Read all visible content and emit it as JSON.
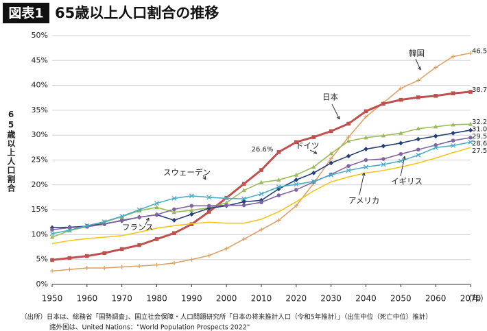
{
  "chart_data": {
    "type": "line",
    "figure_label": "図表1",
    "title": "65歳以上人口割合の推移",
    "y_label": "65歳以上人口割合",
    "x_label": "（年）",
    "notes": [
      "（出所）日本は、総務省「国勢調査」、国立社会保障・人口問題研究所「日本の将来推計人口（令和5年推計）」（出生中位（死亡中位）推計）",
      "諸外国は、United Nations：\"World Population Prospects 2022\""
    ],
    "x": [
      1950,
      1955,
      1960,
      1965,
      1970,
      1975,
      1980,
      1985,
      1990,
      1995,
      2000,
      2005,
      2010,
      2015,
      2020,
      2025,
      2030,
      2035,
      2040,
      2045,
      2050,
      2055,
      2060,
      2065,
      2070
    ],
    "xlim": [
      1950,
      2070
    ],
    "xticks": [
      1950,
      1960,
      1970,
      1980,
      1990,
      2000,
      2010,
      2020,
      2030,
      2040,
      2050,
      2060,
      2070
    ],
    "ylim": [
      0,
      50
    ],
    "yticks": [
      {
        "value": 0,
        "label": "0%"
      },
      {
        "value": 5,
        "label": "5%"
      },
      {
        "value": 10,
        "label": "10%"
      },
      {
        "value": 15,
        "label": "15%"
      },
      {
        "value": 20,
        "label": "20%"
      },
      {
        "value": 25,
        "label": "25%"
      },
      {
        "value": 30,
        "label": "30%"
      },
      {
        "value": 35,
        "label": "35%"
      },
      {
        "value": 40,
        "label": "40%"
      },
      {
        "value": 45,
        "label": "45%"
      },
      {
        "value": 50,
        "label": "50%"
      }
    ],
    "grid": true,
    "series": [
      {
        "name": "韓国",
        "color": "#dfa266",
        "marker": "plus",
        "values": [
          2.7,
          3.0,
          3.3,
          3.3,
          3.5,
          3.7,
          3.9,
          4.3,
          5.0,
          5.8,
          7.2,
          9.1,
          11.0,
          12.9,
          15.8,
          20.3,
          25.3,
          29.6,
          33.7,
          36.5,
          39.4,
          41.0,
          43.6,
          45.8,
          46.5
        ],
        "value_labels": [
          null,
          null,
          null,
          null,
          null,
          null,
          null,
          null,
          null,
          null,
          null,
          null,
          null,
          null,
          null,
          null,
          null,
          null,
          null,
          null,
          null,
          null,
          null,
          null,
          "46.5%"
        ]
      },
      {
        "name": "日本",
        "color": "#c0504d",
        "marker": "square",
        "values": [
          4.9,
          5.3,
          5.7,
          6.3,
          7.1,
          7.9,
          9.1,
          10.3,
          12.1,
          14.6,
          17.4,
          20.2,
          23.0,
          26.6,
          28.6,
          29.6,
          30.8,
          32.3,
          34.8,
          36.3,
          37.1,
          37.6,
          37.9,
          38.4,
          38.7
        ],
        "value_labels": [
          null,
          null,
          null,
          null,
          null,
          null,
          null,
          null,
          null,
          null,
          null,
          null,
          null,
          "26.6%",
          null,
          null,
          null,
          null,
          null,
          null,
          null,
          null,
          null,
          null,
          "38.7%"
        ]
      },
      {
        "name": "ドイツ",
        "color": "#9bbb59",
        "marker": "triangle",
        "values": [
          9.5,
          10.8,
          11.6,
          12.5,
          13.6,
          14.8,
          15.5,
          14.5,
          14.9,
          15.4,
          16.4,
          18.9,
          20.5,
          21.0,
          22.0,
          23.6,
          26.3,
          28.8,
          29.5,
          29.9,
          30.4,
          31.3,
          31.7,
          32.1,
          32.2
        ],
        "value_labels": [
          null,
          null,
          null,
          null,
          null,
          null,
          null,
          null,
          null,
          null,
          null,
          null,
          null,
          null,
          null,
          null,
          null,
          null,
          null,
          null,
          null,
          null,
          null,
          null,
          "32.2%"
        ]
      },
      {
        "name": "イギリス",
        "color": "#243f7a",
        "marker": "diamond",
        "values": [
          11.4,
          11.5,
          11.7,
          12.2,
          12.8,
          13.5,
          14.0,
          12.9,
          14.1,
          15.3,
          15.8,
          16.6,
          16.9,
          19.2,
          21.0,
          22.4,
          24.4,
          25.8,
          27.2,
          27.8,
          28.4,
          29.2,
          29.8,
          30.4,
          31.0
        ],
        "value_labels": [
          null,
          null,
          null,
          null,
          null,
          null,
          null,
          null,
          null,
          null,
          null,
          null,
          null,
          null,
          null,
          null,
          null,
          null,
          null,
          null,
          null,
          null,
          null,
          null,
          "31.0%"
        ]
      },
      {
        "name": "フランス",
        "color": "#8064a2",
        "marker": "circle",
        "values": [
          11.0,
          11.4,
          11.6,
          12.1,
          12.9,
          13.5,
          14.0,
          15.1,
          15.8,
          15.8,
          15.9,
          15.9,
          16.5,
          17.9,
          19.0,
          20.6,
          22.1,
          23.8,
          25.0,
          25.2,
          26.2,
          27.1,
          28.0,
          28.9,
          29.5
        ],
        "value_labels": [
          null,
          null,
          null,
          null,
          null,
          null,
          null,
          null,
          null,
          null,
          null,
          null,
          null,
          null,
          null,
          null,
          null,
          null,
          null,
          null,
          null,
          null,
          null,
          null,
          "29.5%"
        ]
      },
      {
        "name": "スウェーデン",
        "color": "#4bacc6",
        "marker": "x",
        "values": [
          10.2,
          10.9,
          11.8,
          12.6,
          13.7,
          15.0,
          16.3,
          17.3,
          17.8,
          17.5,
          17.3,
          17.2,
          18.2,
          19.6,
          20.1,
          20.7,
          22.0,
          22.9,
          23.6,
          24.1,
          24.8,
          26.0,
          27.5,
          27.9,
          28.6
        ],
        "value_labels": [
          null,
          null,
          null,
          null,
          null,
          null,
          null,
          null,
          null,
          null,
          null,
          null,
          null,
          null,
          null,
          null,
          null,
          null,
          null,
          null,
          null,
          null,
          null,
          null,
          "28.6%"
        ]
      },
      {
        "name": "アメリカ",
        "color": "#f5c518",
        "marker": null,
        "values": [
          8.2,
          8.8,
          9.2,
          9.5,
          9.8,
          10.5,
          11.3,
          11.8,
          12.2,
          12.5,
          12.3,
          12.3,
          13.1,
          14.6,
          16.6,
          18.8,
          20.6,
          21.6,
          22.4,
          22.9,
          23.6,
          24.4,
          25.4,
          26.5,
          27.5
        ],
        "value_labels": [
          null,
          null,
          null,
          null,
          null,
          null,
          null,
          null,
          null,
          null,
          null,
          null,
          null,
          null,
          null,
          null,
          null,
          null,
          null,
          null,
          null,
          null,
          null,
          null,
          "27.5%"
        ]
      }
    ]
  }
}
